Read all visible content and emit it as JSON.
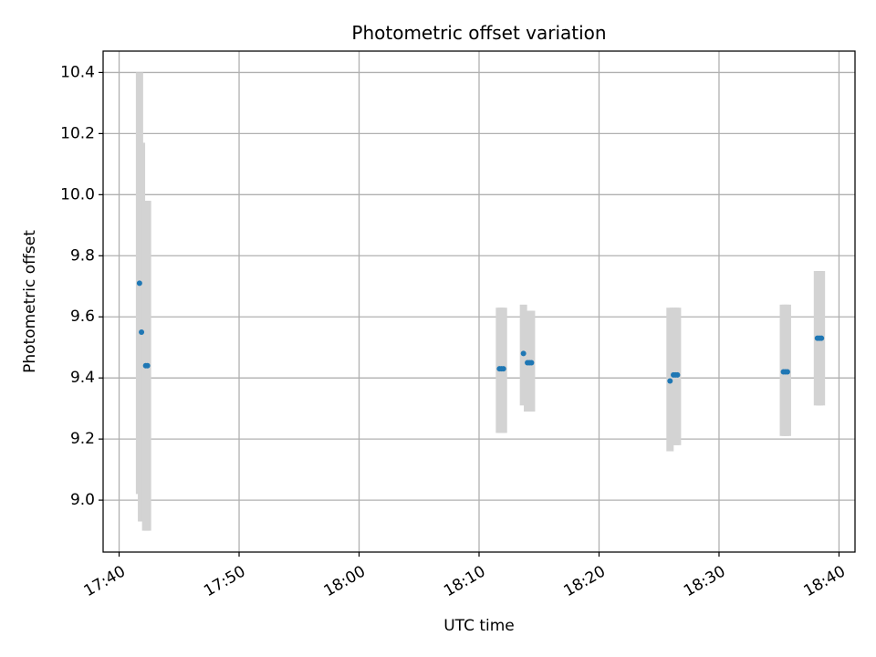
{
  "chart_data": {
    "type": "scatter",
    "title": "Photometric offset variation",
    "xlabel": "UTC time",
    "ylabel": "Photometric offset",
    "x_unit": "UTC time (HH:MM)",
    "xlim": [
      "17:38:40",
      "18:41:20"
    ],
    "ylim": [
      8.83,
      10.47
    ],
    "grid": true,
    "x_ticks": [
      "17:40",
      "17:50",
      "18:00",
      "18:10",
      "18:20",
      "18:30",
      "18:40"
    ],
    "y_ticks": [
      9.0,
      9.2,
      9.4,
      9.6,
      9.8,
      10.0,
      10.2,
      10.4
    ],
    "y_tick_labels": [
      "9.0",
      "9.2",
      "9.4",
      "9.6",
      "9.8",
      "10.0",
      "10.2",
      "10.4"
    ],
    "marker_color": "#1f77b4",
    "errorbar_color": "#d3d3d3",
    "points": [
      {
        "t": "17:41:42",
        "y": 9.71,
        "ylo": 9.02,
        "yhi": 10.4
      },
      {
        "t": "17:41:52",
        "y": 9.55,
        "ylo": 8.93,
        "yhi": 10.17
      },
      {
        "t": "17:42:13",
        "y": 9.44,
        "ylo": 8.9,
        "yhi": 9.98
      },
      {
        "t": "17:42:22",
        "y": 9.44,
        "ylo": 8.9,
        "yhi": 9.98
      },
      {
        "t": "18:11:42",
        "y": 9.43,
        "ylo": 9.22,
        "yhi": 9.63
      },
      {
        "t": "18:11:52",
        "y": 9.43,
        "ylo": 9.22,
        "yhi": 9.63
      },
      {
        "t": "18:12:02",
        "y": 9.43,
        "ylo": 9.22,
        "yhi": 9.63
      },
      {
        "t": "18:13:42",
        "y": 9.48,
        "ylo": 9.31,
        "yhi": 9.64
      },
      {
        "t": "18:14:02",
        "y": 9.45,
        "ylo": 9.29,
        "yhi": 9.62
      },
      {
        "t": "18:14:12",
        "y": 9.45,
        "ylo": 9.29,
        "yhi": 9.62
      },
      {
        "t": "18:14:22",
        "y": 9.45,
        "ylo": 9.29,
        "yhi": 9.62
      },
      {
        "t": "18:25:55",
        "y": 9.39,
        "ylo": 9.16,
        "yhi": 9.63
      },
      {
        "t": "18:26:12",
        "y": 9.41,
        "ylo": 9.18,
        "yhi": 9.63
      },
      {
        "t": "18:26:22",
        "y": 9.41,
        "ylo": 9.18,
        "yhi": 9.63
      },
      {
        "t": "18:26:32",
        "y": 9.41,
        "ylo": 9.18,
        "yhi": 9.63
      },
      {
        "t": "18:35:22",
        "y": 9.42,
        "ylo": 9.21,
        "yhi": 9.64
      },
      {
        "t": "18:35:32",
        "y": 9.42,
        "ylo": 9.21,
        "yhi": 9.64
      },
      {
        "t": "18:35:42",
        "y": 9.42,
        "ylo": 9.21,
        "yhi": 9.64
      },
      {
        "t": "18:38:12",
        "y": 9.53,
        "ylo": 9.31,
        "yhi": 9.75
      },
      {
        "t": "18:38:22",
        "y": 9.53,
        "ylo": 9.31,
        "yhi": 9.75
      },
      {
        "t": "18:38:32",
        "y": 9.53,
        "ylo": 9.31,
        "yhi": 9.75
      }
    ]
  }
}
